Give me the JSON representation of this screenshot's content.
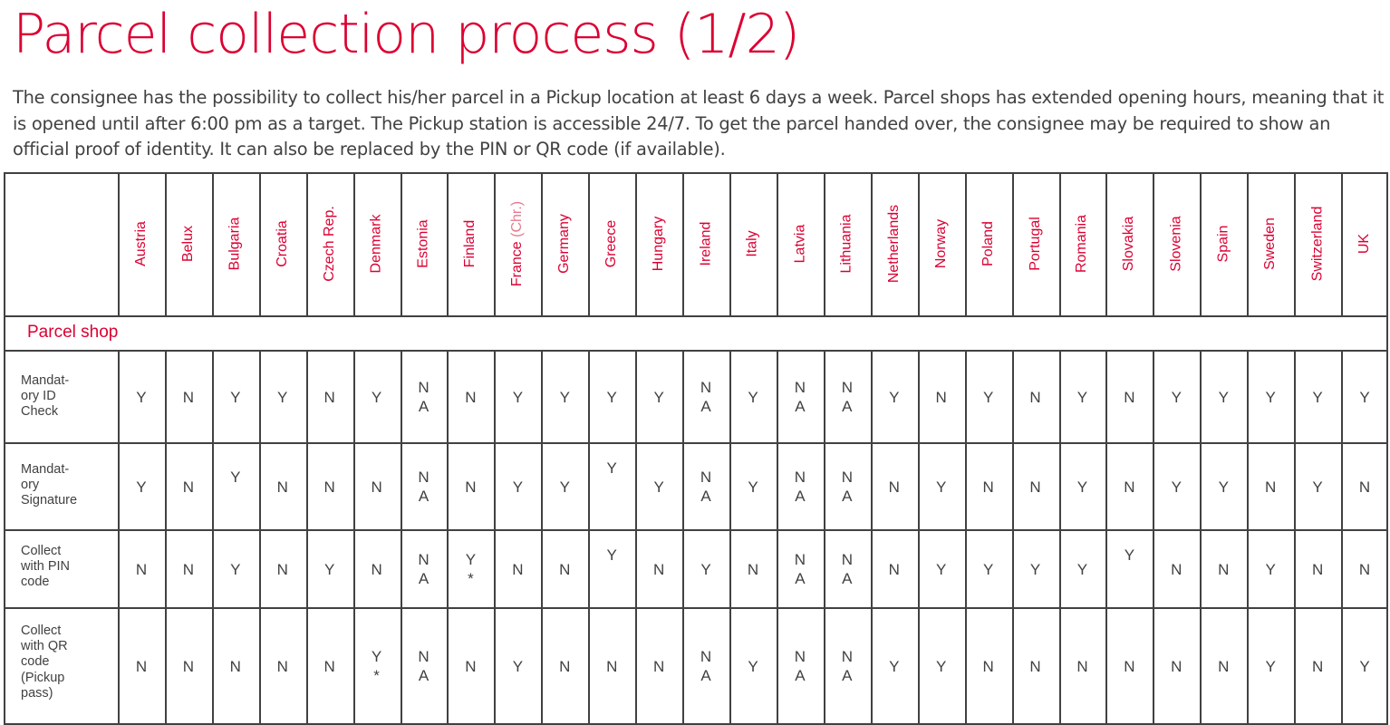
{
  "title": "Parcel collection process (1/2)",
  "intro": "The consignee has the possibility to collect his/her parcel in a Pickup location at least 6 days a week. Parcel shops has extended opening hours, meaning that it is opened until after 6:00 pm as a target. The Pickup station is accessible 24/7. To get the parcel handed over, the consignee may be required to show  an official proof of identity. It can also be replaced by the PIN or QR code (if available).",
  "table": {
    "columns": [
      {
        "label": "Austria"
      },
      {
        "label": "Belux"
      },
      {
        "label": "Bulgaria"
      },
      {
        "label": "Croatia"
      },
      {
        "label": "Czech Rep."
      },
      {
        "label": "Denmark"
      },
      {
        "label": "Estonia"
      },
      {
        "label": "Finland"
      },
      {
        "label": "France",
        "suffix": " (Chr.)"
      },
      {
        "label": "Germany"
      },
      {
        "label": "Greece"
      },
      {
        "label": "Hungary"
      },
      {
        "label": "Ireland"
      },
      {
        "label": "Italy"
      },
      {
        "label": "Latvia"
      },
      {
        "label": "Lithuania"
      },
      {
        "label": "Netherlands"
      },
      {
        "label": "Norway"
      },
      {
        "label": "Poland"
      },
      {
        "label": "Portugal"
      },
      {
        "label": "Romania"
      },
      {
        "label": "Slovakia"
      },
      {
        "label": "Slovenia"
      },
      {
        "label": "Spain"
      },
      {
        "label": "Sweden"
      },
      {
        "label": "Switzerland"
      },
      {
        "label": "UK"
      }
    ],
    "section_label": "Parcel shop",
    "rows": [
      {
        "label": "Mandat-\nory ID\nCheck",
        "cells": [
          "Y",
          "N",
          "Y",
          "Y",
          "N",
          "Y",
          "N\nA",
          "N",
          "Y",
          "Y",
          "Y",
          "Y",
          "N\nA",
          "Y",
          "N\nA",
          "N\nA",
          "Y",
          "N",
          "Y",
          "N",
          "Y",
          "N",
          "Y",
          "Y",
          "Y",
          "Y",
          "Y"
        ]
      },
      {
        "label": "Mandat-\nory\nSignature",
        "cells": [
          "Y",
          "N",
          "Y",
          "N",
          "N",
          "N",
          "N\nA",
          "N",
          "Y",
          "Y",
          "Y",
          "Y",
          "N\nA",
          "Y",
          "N\nA",
          "N\nA",
          "N",
          "Y",
          "N",
          "N",
          "Y",
          "N",
          "Y",
          "Y",
          "N",
          "Y",
          "N"
        ]
      },
      {
        "label": "Collect\nwith PIN\ncode",
        "cells": [
          "N",
          "N",
          "Y",
          "N",
          "Y",
          "N",
          "N\nA",
          "Y\n*",
          "N",
          "N",
          "Y",
          "N",
          "Y",
          "N",
          "N\nA",
          "N\nA",
          "N",
          "Y",
          "Y",
          "Y",
          "Y",
          "Y",
          "N",
          "N",
          "Y",
          "N",
          "N"
        ]
      },
      {
        "label": "Collect\nwith QR\ncode\n(Pickup\npass)",
        "cells": [
          "N",
          "N",
          "N",
          "N",
          "N",
          "Y\n*",
          "N\nA",
          "N",
          "Y",
          "N",
          "N",
          "N",
          "N\nA",
          "Y",
          "N\nA",
          "N\nA",
          "Y",
          "Y",
          "N",
          "N",
          "N",
          "N",
          "N",
          "N",
          "Y",
          "N",
          "Y"
        ]
      }
    ]
  }
}
